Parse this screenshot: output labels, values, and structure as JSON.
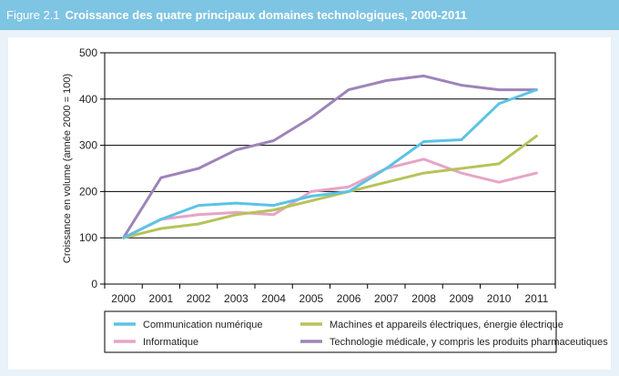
{
  "header": {
    "figure_number": "Figure 2.1",
    "title": "Croissance des quatre principaux domaines technologiques, 2000-2011"
  },
  "chart_data": {
    "type": "line",
    "title": "Croissance des quatre principaux domaines technologiques, 2000-2011",
    "xlabel": "",
    "ylabel": "Croissance en volume (année 2000 = 100)",
    "x": [
      "2000",
      "2001",
      "2002",
      "2003",
      "2004",
      "2005",
      "2006",
      "2007",
      "2008",
      "2009",
      "2010",
      "2011"
    ],
    "yticks": [
      0,
      100,
      200,
      300,
      400,
      500
    ],
    "ylim": [
      0,
      500
    ],
    "grid": "horizontal",
    "legend_position": "bottom",
    "series": [
      {
        "name": "Communication numérique",
        "color": "#5bc3e6",
        "values": [
          100,
          140,
          170,
          175,
          170,
          190,
          200,
          250,
          308,
          312,
          390,
          420
        ]
      },
      {
        "name": "Machines et appareils électriques, énergie électrique",
        "color": "#b7c25a",
        "values": [
          100,
          120,
          130,
          150,
          160,
          180,
          200,
          220,
          240,
          250,
          260,
          320
        ]
      },
      {
        "name": "Informatique",
        "color": "#e7a4c6",
        "values": [
          100,
          140,
          150,
          155,
          150,
          200,
          210,
          250,
          270,
          240,
          220,
          240
        ]
      },
      {
        "name": "Technologie médicale, y compris les produits pharmaceutiques",
        "color": "#9d84b8",
        "values": [
          100,
          230,
          250,
          290,
          310,
          360,
          420,
          440,
          450,
          430,
          420,
          420
        ]
      }
    ]
  }
}
